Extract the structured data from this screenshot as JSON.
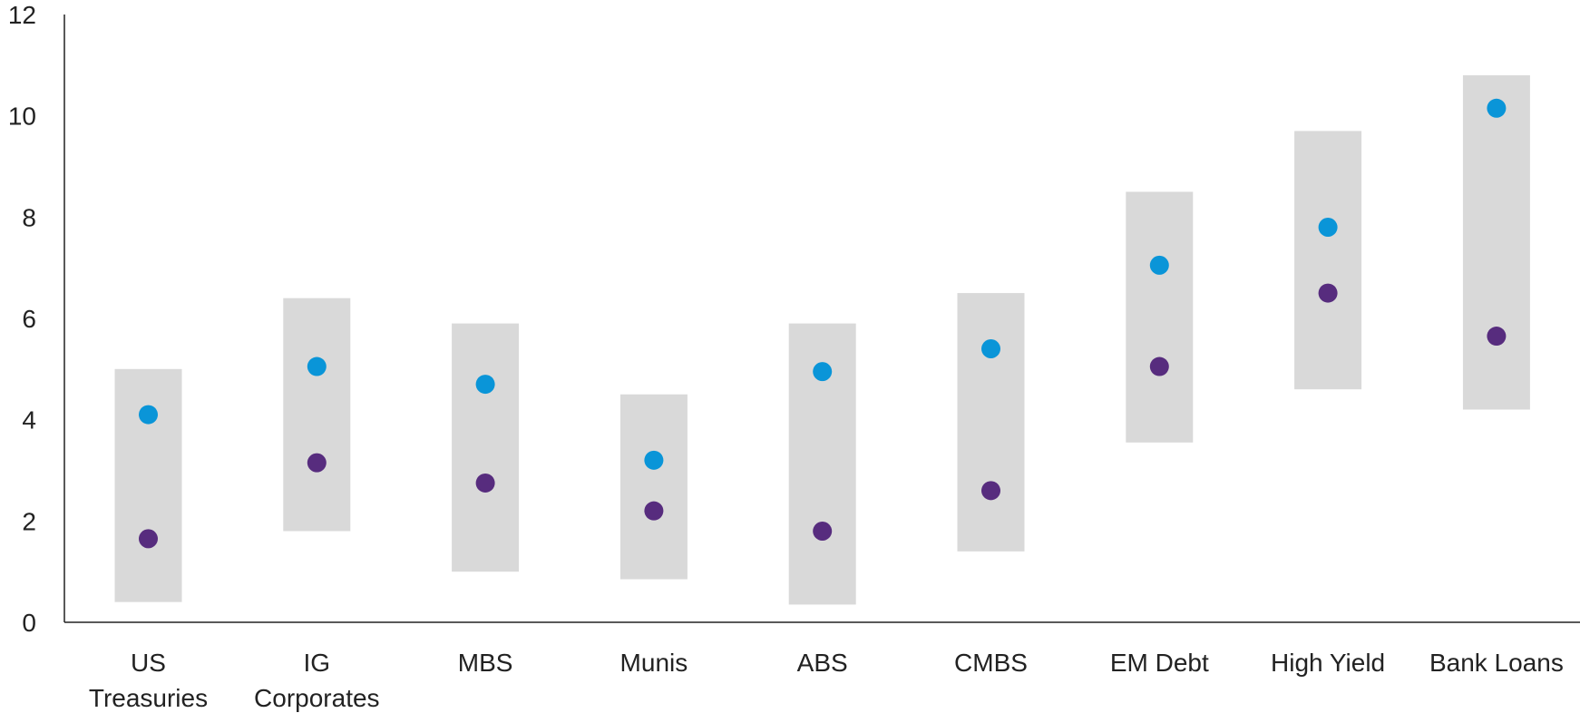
{
  "chart_data": {
    "type": "scatter",
    "title": "",
    "xlabel": "",
    "ylabel": "",
    "ylim": [
      0,
      12
    ],
    "yticks": [
      "0",
      "2",
      "4",
      "6",
      "8",
      "10",
      "12"
    ],
    "categories": [
      [
        "US",
        "Treasuries"
      ],
      [
        "IG",
        "Corporates"
      ],
      [
        "MBS"
      ],
      [
        "Munis"
      ],
      [
        "ABS"
      ],
      [
        "CMBS"
      ],
      [
        "EM Debt"
      ],
      [
        "High Yield"
      ],
      [
        "Bank Loans"
      ]
    ],
    "ranges": [
      [
        0.4,
        5.0
      ],
      [
        1.8,
        6.4
      ],
      [
        1.0,
        5.9
      ],
      [
        0.85,
        4.5
      ],
      [
        0.35,
        5.9
      ],
      [
        1.4,
        6.5
      ],
      [
        3.55,
        8.5
      ],
      [
        4.6,
        9.7
      ],
      [
        4.2,
        10.8
      ]
    ],
    "series": [
      {
        "values": [
          4.1,
          5.05,
          4.7,
          3.2,
          4.95,
          5.4,
          7.05,
          7.8,
          10.15
        ]
      },
      {
        "values": [
          1.65,
          3.15,
          2.75,
          2.2,
          1.8,
          2.6,
          5.05,
          6.5,
          5.65
        ]
      }
    ],
    "grid": false,
    "legend": "none"
  },
  "colors": {
    "range_bar": "#d9d9d9",
    "series_1": "#0a95d8",
    "series_2": "#572c7e",
    "axis": "#222222"
  }
}
